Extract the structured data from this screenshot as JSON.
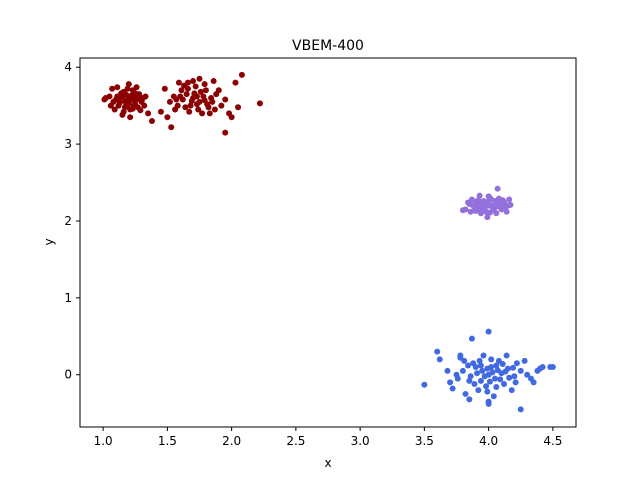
{
  "chart_data": {
    "type": "scatter",
    "title": "VBEM-400",
    "xlabel": "x",
    "ylabel": "y",
    "xlim": [
      0.82,
      4.68
    ],
    "ylim": [
      -0.68,
      4.12
    ],
    "xticks": [
      1.0,
      1.5,
      2.0,
      2.5,
      3.0,
      3.5,
      4.0,
      4.5
    ],
    "xtick_labels": [
      "1.0",
      "1.5",
      "2.0",
      "2.5",
      "3.0",
      "3.5",
      "4.0",
      "4.5"
    ],
    "yticks": [
      0,
      1,
      2,
      3,
      4
    ],
    "ytick_labels": [
      "0",
      "1",
      "2",
      "3",
      "4"
    ],
    "grid": false,
    "legend": "none",
    "series": [
      {
        "color": "#8b0000",
        "points": [
          [
            1.2,
            3.6
          ],
          [
            1.18,
            3.55
          ],
          [
            1.22,
            3.58
          ],
          [
            1.15,
            3.62
          ],
          [
            1.25,
            3.52
          ],
          [
            1.12,
            3.5
          ],
          [
            1.28,
            3.65
          ],
          [
            1.17,
            3.48
          ],
          [
            1.23,
            3.7
          ],
          [
            1.1,
            3.58
          ],
          [
            1.3,
            3.55
          ],
          [
            1.21,
            3.45
          ],
          [
            1.14,
            3.66
          ],
          [
            1.26,
            3.6
          ],
          [
            1.19,
            3.72
          ],
          [
            1.08,
            3.55
          ],
          [
            1.24,
            3.5
          ],
          [
            1.16,
            3.42
          ],
          [
            1.27,
            3.48
          ],
          [
            1.13,
            3.6
          ],
          [
            1.22,
            3.63
          ],
          [
            1.18,
            3.52
          ],
          [
            1.05,
            3.62
          ],
          [
            1.02,
            3.6
          ],
          [
            1.01,
            3.58
          ],
          [
            1.32,
            3.5
          ],
          [
            1.35,
            3.4
          ],
          [
            1.38,
            3.3
          ],
          [
            1.33,
            3.62
          ],
          [
            1.11,
            3.74
          ],
          [
            1.2,
            3.78
          ],
          [
            1.26,
            3.74
          ],
          [
            1.09,
            3.45
          ],
          [
            1.15,
            3.38
          ],
          [
            1.21,
            3.35
          ],
          [
            1.29,
            3.44
          ],
          [
            1.06,
            3.5
          ],
          [
            1.17,
            3.56
          ],
          [
            1.24,
            3.57
          ],
          [
            1.19,
            3.5
          ],
          [
            1.13,
            3.54
          ],
          [
            1.23,
            3.46
          ],
          [
            1.28,
            3.58
          ],
          [
            1.11,
            3.62
          ],
          [
            1.16,
            3.68
          ],
          [
            1.25,
            3.66
          ],
          [
            1.2,
            3.53
          ],
          [
            1.18,
            3.64
          ],
          [
            1.07,
            3.72
          ],
          [
            1.31,
            3.6
          ],
          [
            1.7,
            3.6
          ],
          [
            1.75,
            3.55
          ],
          [
            1.65,
            3.65
          ],
          [
            1.8,
            3.7
          ],
          [
            1.68,
            3.5
          ],
          [
            1.78,
            3.62
          ],
          [
            1.72,
            3.75
          ],
          [
            1.62,
            3.58
          ],
          [
            1.85,
            3.55
          ],
          [
            1.74,
            3.45
          ],
          [
            1.66,
            3.72
          ],
          [
            1.82,
            3.48
          ],
          [
            1.7,
            3.82
          ],
          [
            1.76,
            3.68
          ],
          [
            1.6,
            3.62
          ],
          [
            1.88,
            3.65
          ],
          [
            1.73,
            3.52
          ],
          [
            1.79,
            3.78
          ],
          [
            1.64,
            3.48
          ],
          [
            1.84,
            3.6
          ],
          [
            1.69,
            3.56
          ],
          [
            1.77,
            3.4
          ],
          [
            1.58,
            3.5
          ],
          [
            1.55,
            3.62
          ],
          [
            1.52,
            3.55
          ],
          [
            1.5,
            3.35
          ],
          [
            1.53,
            3.22
          ],
          [
            1.56,
            3.45
          ],
          [
            1.48,
            3.72
          ],
          [
            1.59,
            3.8
          ],
          [
            1.63,
            3.76
          ],
          [
            1.86,
            3.82
          ],
          [
            1.9,
            3.7
          ],
          [
            1.92,
            3.5
          ],
          [
            1.95,
            3.58
          ],
          [
            1.98,
            3.4
          ],
          [
            2.0,
            3.35
          ],
          [
            1.95,
            3.15
          ],
          [
            2.05,
            3.48
          ],
          [
            2.03,
            3.8
          ],
          [
            2.08,
            3.9
          ],
          [
            2.22,
            3.53
          ],
          [
            1.45,
            3.42
          ],
          [
            1.83,
            3.4
          ],
          [
            1.61,
            3.7
          ],
          [
            1.67,
            3.42
          ],
          [
            1.81,
            3.52
          ],
          [
            1.71,
            3.66
          ],
          [
            1.87,
            3.45
          ],
          [
            1.57,
            3.58
          ],
          [
            1.75,
            3.85
          ],
          [
            1.66,
            3.8
          ],
          [
            1.79,
            3.57
          ],
          [
            1.73,
            3.62
          ]
        ]
      },
      {
        "color": "#9370db",
        "points": [
          [
            4.0,
            2.2
          ],
          [
            3.95,
            2.18
          ],
          [
            4.05,
            2.22
          ],
          [
            3.9,
            2.25
          ],
          [
            4.1,
            2.15
          ],
          [
            3.88,
            2.2
          ],
          [
            4.12,
            2.24
          ],
          [
            3.98,
            2.12
          ],
          [
            4.02,
            2.28
          ],
          [
            3.92,
            2.16
          ],
          [
            4.08,
            2.19
          ],
          [
            3.85,
            2.22
          ],
          [
            4.15,
            2.2
          ],
          [
            3.96,
            2.26
          ],
          [
            4.04,
            2.14
          ],
          [
            3.82,
            2.15
          ],
          [
            3.8,
            2.14
          ],
          [
            4.17,
            2.21
          ],
          [
            3.99,
            2.05
          ],
          [
            4.07,
            2.42
          ],
          [
            3.93,
            2.33
          ],
          [
            4.01,
            2.3
          ],
          [
            3.87,
            2.28
          ],
          [
            4.11,
            2.27
          ],
          [
            3.94,
            2.1
          ],
          [
            4.06,
            2.1
          ],
          [
            3.97,
            2.22
          ],
          [
            4.03,
            2.18
          ],
          [
            3.91,
            2.21
          ],
          [
            4.09,
            2.24
          ],
          [
            3.89,
            2.18
          ],
          [
            4.13,
            2.17
          ],
          [
            4.0,
            2.32
          ],
          [
            3.84,
            2.24
          ],
          [
            4.16,
            2.28
          ],
          [
            3.95,
            2.14
          ],
          [
            4.05,
            2.26
          ],
          [
            3.86,
            2.12
          ],
          [
            4.14,
            2.12
          ],
          [
            4.02,
            2.2
          ],
          [
            3.97,
            2.17
          ],
          [
            4.08,
            2.29
          ],
          [
            3.92,
            2.27
          ],
          [
            4.04,
            2.16
          ],
          [
            3.9,
            2.13
          ],
          [
            4.1,
            2.22
          ],
          [
            3.99,
            2.25
          ],
          [
            4.01,
            2.11
          ],
          [
            3.94,
            2.23
          ],
          [
            4.06,
            2.19
          ]
        ]
      },
      {
        "color": "#4169e1",
        "points": [
          [
            4.0,
            0.0
          ],
          [
            3.95,
            0.05
          ],
          [
            4.05,
            -0.05
          ],
          [
            3.9,
            0.1
          ],
          [
            4.1,
            0.02
          ],
          [
            3.85,
            -0.08
          ],
          [
            4.15,
            0.08
          ],
          [
            3.98,
            -0.15
          ],
          [
            4.02,
            0.2
          ],
          [
            3.8,
            0.05
          ],
          [
            4.2,
            -0.02
          ],
          [
            3.88,
            0.15
          ],
          [
            4.12,
            -0.12
          ],
          [
            3.92,
            -0.2
          ],
          [
            4.08,
            0.18
          ],
          [
            3.75,
            0.0
          ],
          [
            4.25,
            0.05
          ],
          [
            3.7,
            -0.1
          ],
          [
            4.3,
            0.0
          ],
          [
            3.78,
            0.22
          ],
          [
            4.22,
            0.15
          ],
          [
            3.82,
            -0.25
          ],
          [
            4.18,
            -0.2
          ],
          [
            3.96,
            0.25
          ],
          [
            4.04,
            -0.28
          ],
          [
            3.6,
            0.3
          ],
          [
            3.62,
            0.2
          ],
          [
            3.68,
            0.05
          ],
          [
            3.72,
            -0.18
          ],
          [
            3.5,
            -0.13
          ],
          [
            3.78,
            0.25
          ],
          [
            3.87,
            0.47
          ],
          [
            4.0,
            0.56
          ],
          [
            4.0,
            -0.35
          ],
          [
            4.0,
            -0.38
          ],
          [
            3.85,
            -0.32
          ],
          [
            4.25,
            -0.45
          ],
          [
            4.35,
            -0.1
          ],
          [
            4.38,
            0.05
          ],
          [
            4.42,
            0.1
          ],
          [
            4.48,
            0.1
          ],
          [
            4.5,
            0.1
          ],
          [
            4.4,
            0.08
          ],
          [
            4.33,
            -0.05
          ],
          [
            4.28,
            0.18
          ],
          [
            4.14,
            0.25
          ],
          [
            4.06,
            0.12
          ],
          [
            3.94,
            -0.08
          ],
          [
            3.91,
            0.02
          ],
          [
            4.09,
            -0.06
          ],
          [
            3.86,
            -0.02
          ],
          [
            4.16,
            -0.04
          ],
          [
            3.99,
            0.08
          ],
          [
            4.01,
            -0.09
          ],
          [
            3.93,
            0.18
          ],
          [
            4.07,
            0.06
          ],
          [
            3.84,
            0.12
          ],
          [
            4.11,
            0.14
          ],
          [
            3.76,
            -0.05
          ],
          [
            4.21,
            -0.1
          ],
          [
            3.97,
            -0.02
          ],
          [
            4.03,
            0.03
          ],
          [
            3.89,
            -0.12
          ],
          [
            4.13,
            0.04
          ],
          [
            3.81,
            0.18
          ],
          [
            4.19,
            0.09
          ],
          [
            3.94,
            0.12
          ],
          [
            4.06,
            -0.16
          ],
          [
            3.99,
            -0.22
          ],
          [
            4.02,
            0.1
          ]
        ]
      }
    ]
  }
}
